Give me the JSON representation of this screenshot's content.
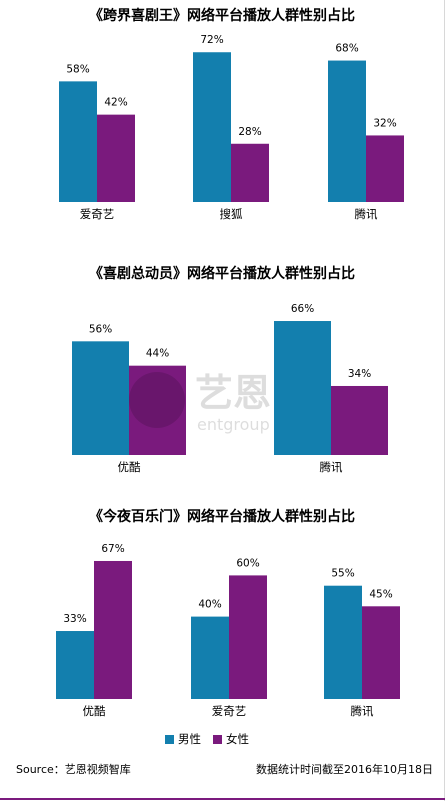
{
  "colors": {
    "male": "#137fae",
    "female": "#7a1a7d"
  },
  "legend": {
    "male": "男性",
    "female": "女性"
  },
  "watermark": {
    "text": "艺恩",
    "subtext": "entgroup"
  },
  "footer": {
    "source": "Source：艺恩视频智库",
    "date_note": "数据统计时间截至2016年10月18日"
  },
  "chart_data": [
    {
      "type": "bar",
      "title": "《跨界喜剧王》网络平台播放人群性别占比",
      "categories": [
        "爱奇艺",
        "搜狐",
        "腾讯"
      ],
      "series": [
        {
          "name": "男性",
          "values": [
            58,
            72,
            68
          ],
          "labels": [
            "58%",
            "72%",
            "68%"
          ]
        },
        {
          "name": "女性",
          "values": [
            42,
            28,
            32
          ],
          "labels": [
            "42%",
            "28%",
            "32%"
          ]
        }
      ],
      "ylim": [
        0,
        100
      ]
    },
    {
      "type": "bar",
      "title": "《喜剧总动员》网络平台播放人群性别占比",
      "categories": [
        "优酷",
        "腾讯"
      ],
      "series": [
        {
          "name": "男性",
          "values": [
            56,
            66
          ],
          "labels": [
            "56%",
            "66%"
          ]
        },
        {
          "name": "女性",
          "values": [
            44,
            34
          ],
          "labels": [
            "44%",
            "34%"
          ]
        }
      ],
      "ylim": [
        0,
        100
      ]
    },
    {
      "type": "bar",
      "title": "《今夜百乐门》网络平台播放人群性别占比",
      "categories": [
        "优酷",
        "爱奇艺",
        "腾讯"
      ],
      "series": [
        {
          "name": "男性",
          "values": [
            33,
            40,
            55
          ],
          "labels": [
            "33%",
            "40%",
            "55%"
          ]
        },
        {
          "name": "女性",
          "values": [
            67,
            60,
            45
          ],
          "labels": [
            "67%",
            "60%",
            "45%"
          ]
        }
      ],
      "ylim": [
        0,
        100
      ]
    }
  ]
}
